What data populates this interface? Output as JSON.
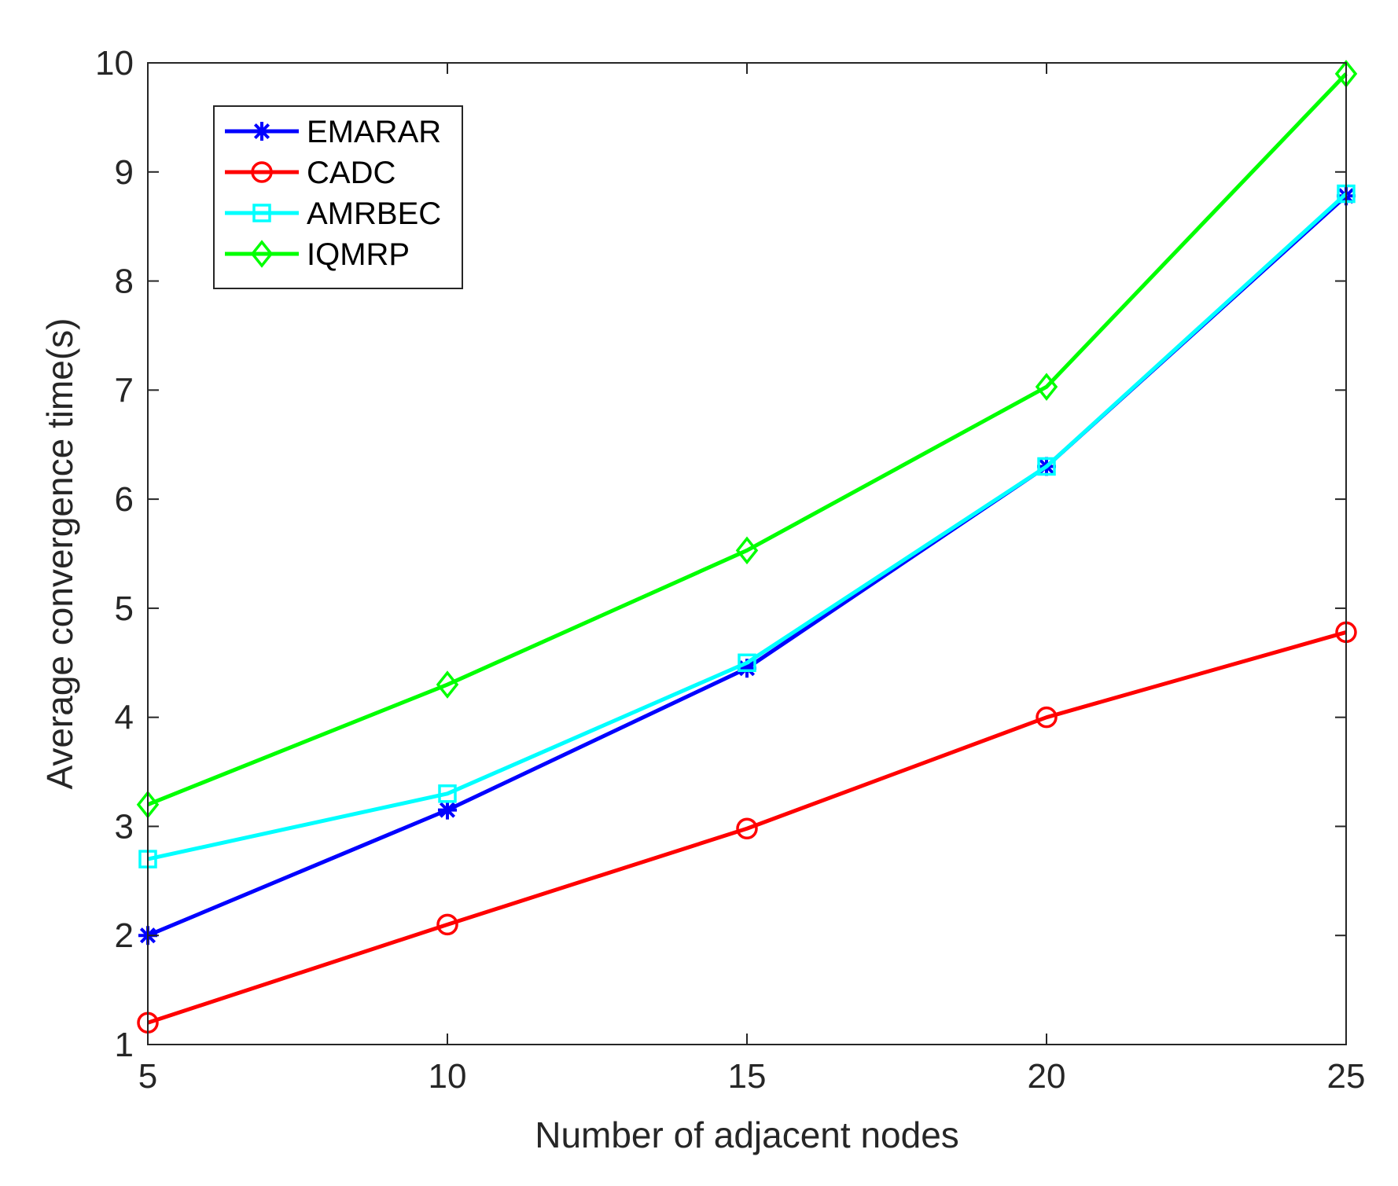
{
  "chart_data": {
    "type": "line",
    "title": "",
    "xlabel": "Number of adjacent nodes",
    "ylabel": "Average convergence time(s)",
    "x": [
      5,
      10,
      15,
      20,
      25
    ],
    "xlim": [
      5,
      25
    ],
    "ylim": [
      1,
      10
    ],
    "xticks": [
      5,
      10,
      15,
      20,
      25
    ],
    "yticks": [
      1,
      2,
      3,
      4,
      5,
      6,
      7,
      8,
      9,
      10
    ],
    "grid": false,
    "legend_position": "top-left",
    "series": [
      {
        "name": "EMARAR",
        "values": [
          2.0,
          3.15,
          4.45,
          6.3,
          8.78
        ],
        "color": "#0000ff",
        "marker": "asterisk"
      },
      {
        "name": "CADC",
        "values": [
          1.2,
          2.1,
          2.98,
          4.0,
          4.78
        ],
        "color": "#ff0000",
        "marker": "circle"
      },
      {
        "name": "AMRBEC",
        "values": [
          2.7,
          3.3,
          4.5,
          6.3,
          8.8
        ],
        "color": "#00ffff",
        "marker": "square"
      },
      {
        "name": "IQMRP",
        "values": [
          3.2,
          4.3,
          5.53,
          7.03,
          9.9
        ],
        "color": "#00ff00",
        "marker": "diamond"
      }
    ]
  }
}
